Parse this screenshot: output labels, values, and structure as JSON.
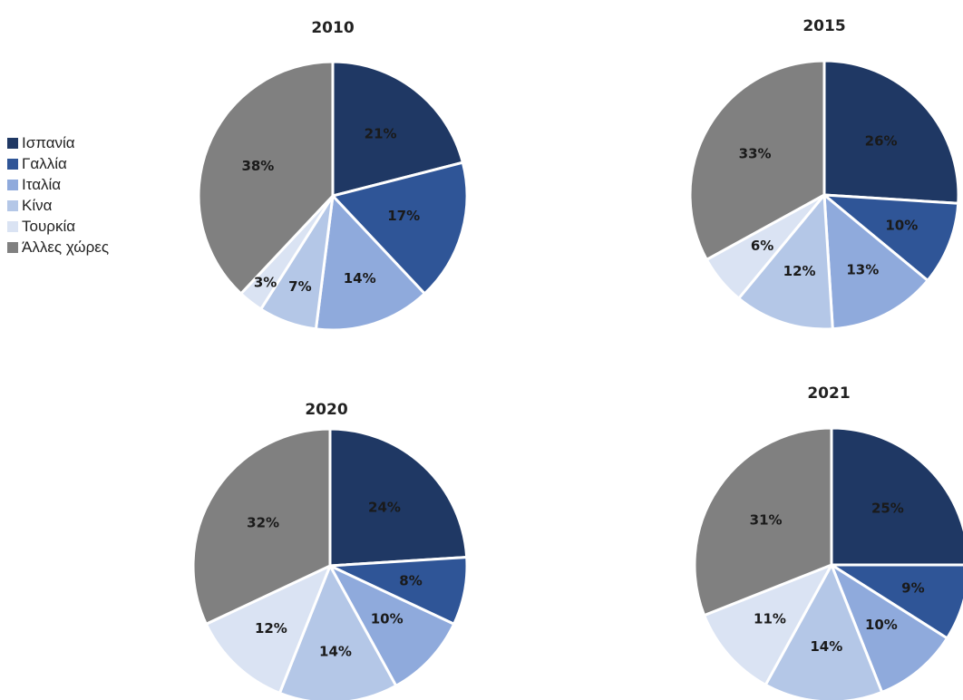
{
  "legend": {
    "position": "left",
    "items": [
      {
        "label": "Ισπανία",
        "color": "#1f3864"
      },
      {
        "label": "Γαλλία",
        "color": "#2f5597"
      },
      {
        "label": "Ιταλία",
        "color": "#8faadc"
      },
      {
        "label": "Κίνα",
        "color": "#b4c7e7"
      },
      {
        "label": "Τουρκία",
        "color": "#dae3f3"
      },
      {
        "label": "Άλλες χώρες",
        "color": "#808080"
      }
    ]
  },
  "chart_data": [
    {
      "type": "pie",
      "title": "2010",
      "categories": [
        "Ισπανία",
        "Γαλλία",
        "Ιταλία",
        "Κίνα",
        "Τουρκία",
        "Άλλες χώρες"
      ],
      "values": [
        21,
        17,
        14,
        7,
        3,
        38
      ],
      "value_labels": [
        "21%",
        "17%",
        "14%",
        "7%",
        "3%",
        "38%"
      ],
      "unit": "%"
    },
    {
      "type": "pie",
      "title": "2015",
      "categories": [
        "Ισπανία",
        "Γαλλία",
        "Ιταλία",
        "Κίνα",
        "Τουρκία",
        "Άλλες χώρες"
      ],
      "values": [
        26,
        10,
        13,
        12,
        6,
        33
      ],
      "value_labels": [
        "26%",
        "10%",
        "13%",
        "12%",
        "6%",
        "33%"
      ],
      "unit": "%"
    },
    {
      "type": "pie",
      "title": "2020",
      "categories": [
        "Ισπανία",
        "Γαλλία",
        "Ιταλία",
        "Κίνα",
        "Τουρκία",
        "Άλλες χώρες"
      ],
      "values": [
        24,
        8,
        10,
        14,
        12,
        32
      ],
      "value_labels": [
        "24%",
        "8%",
        "10%",
        "14%",
        "12%",
        "32%"
      ],
      "unit": "%"
    },
    {
      "type": "pie",
      "title": "2021",
      "categories": [
        "Ισπανία",
        "Γαλλία",
        "Ιταλία",
        "Κίνα",
        "Τουρκία",
        "Άλλες χώρες"
      ],
      "values": [
        25,
        9,
        10,
        14,
        11,
        31
      ],
      "value_labels": [
        "25%",
        "9%",
        "10%",
        "14%",
        "11%",
        "31%"
      ],
      "unit": "%"
    }
  ]
}
